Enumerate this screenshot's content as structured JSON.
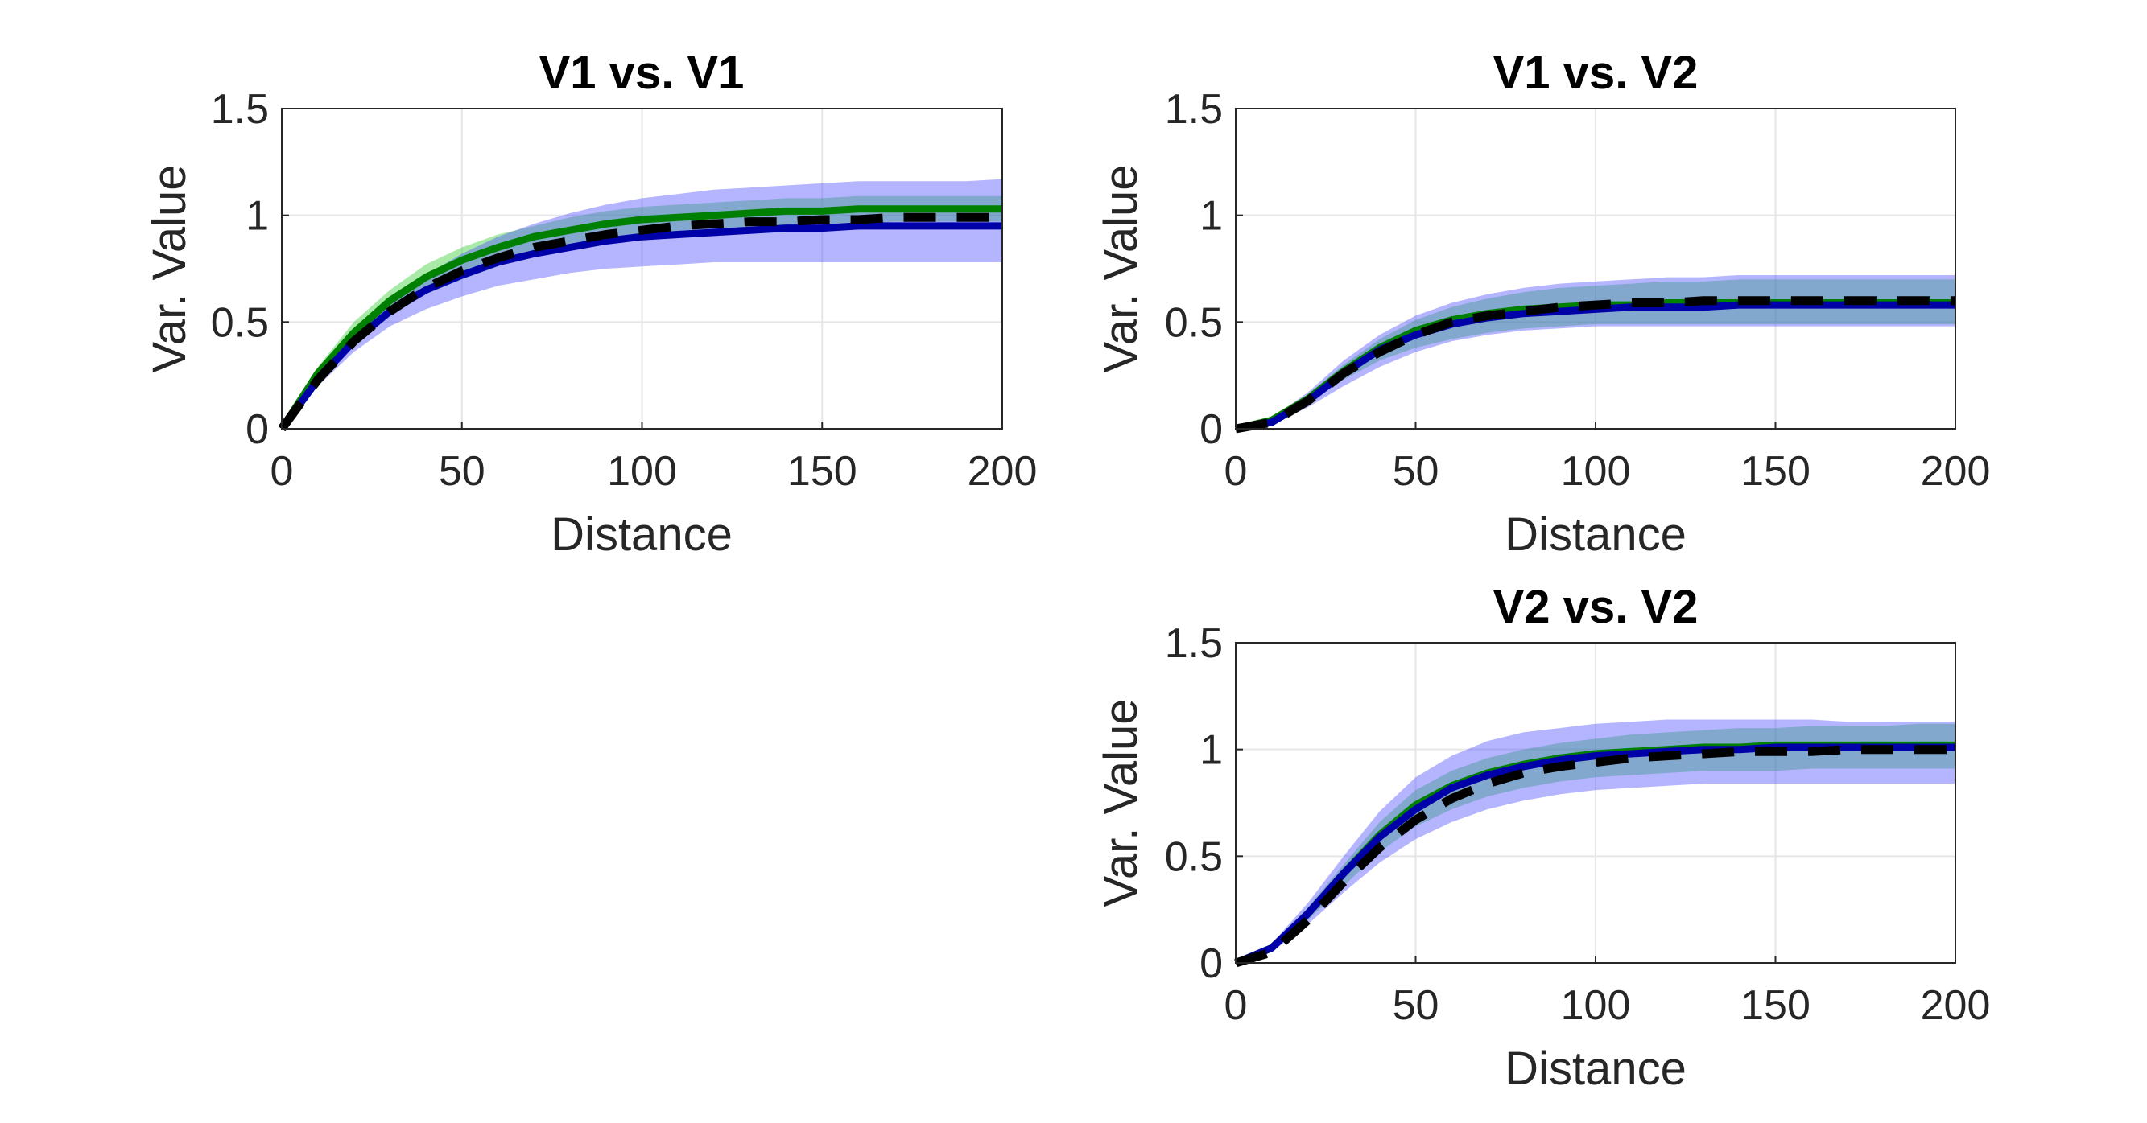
{
  "figure": {
    "style": {
      "axis_color": "#262626",
      "grid_color": "#e6e6e6",
      "green_band": "#33cc33",
      "blue_band": "#4d4dff",
      "green_line": "#008000",
      "blue_line": "#0000a8",
      "ref_line": "#000000"
    }
  },
  "chart_data": [
    {
      "type": "line",
      "title": "V1 vs. V1",
      "xlabel": "Distance",
      "ylabel": "Var. Value",
      "xlim": [
        0,
        200
      ],
      "ylim": [
        0,
        1.5
      ],
      "xticks": [
        0,
        50,
        100,
        150,
        200
      ],
      "yticks": [
        0,
        0.5,
        1,
        1.5
      ],
      "xtick_labels": [
        "0",
        "50",
        "100",
        "150",
        "200"
      ],
      "ytick_labels": [
        "0",
        "0.5",
        "1",
        "1.5"
      ],
      "grid": true,
      "x": [
        0,
        10,
        20,
        30,
        40,
        50,
        60,
        70,
        80,
        90,
        100,
        110,
        120,
        130,
        140,
        150,
        160,
        170,
        180,
        190,
        200
      ],
      "series": [
        {
          "role": "band",
          "color": "green",
          "lower": [
            0,
            0.23,
            0.4,
            0.53,
            0.63,
            0.7,
            0.76,
            0.81,
            0.85,
            0.88,
            0.9,
            0.92,
            0.93,
            0.94,
            0.95,
            0.96,
            0.96,
            0.97,
            0.97,
            0.97,
            0.97
          ],
          "upper": [
            0,
            0.29,
            0.5,
            0.65,
            0.77,
            0.85,
            0.91,
            0.95,
            0.99,
            1.02,
            1.04,
            1.05,
            1.06,
            1.07,
            1.08,
            1.08,
            1.09,
            1.09,
            1.09,
            1.09,
            1.09
          ]
        },
        {
          "role": "band",
          "color": "blue",
          "lower": [
            0,
            0.2,
            0.36,
            0.48,
            0.56,
            0.62,
            0.67,
            0.7,
            0.73,
            0.75,
            0.76,
            0.77,
            0.78,
            0.78,
            0.78,
            0.78,
            0.78,
            0.78,
            0.78,
            0.78,
            0.78
          ],
          "upper": [
            0,
            0.26,
            0.45,
            0.6,
            0.72,
            0.82,
            0.9,
            0.96,
            1.01,
            1.05,
            1.08,
            1.1,
            1.12,
            1.13,
            1.14,
            1.15,
            1.16,
            1.16,
            1.16,
            1.16,
            1.17
          ]
        },
        {
          "role": "line",
          "color": "green",
          "values": [
            0,
            0.26,
            0.45,
            0.6,
            0.71,
            0.79,
            0.85,
            0.9,
            0.93,
            0.96,
            0.98,
            0.99,
            1.0,
            1.01,
            1.02,
            1.02,
            1.03,
            1.03,
            1.03,
            1.03,
            1.03
          ]
        },
        {
          "role": "line",
          "color": "blue",
          "values": [
            0,
            0.23,
            0.41,
            0.55,
            0.65,
            0.72,
            0.78,
            0.82,
            0.85,
            0.88,
            0.9,
            0.91,
            0.92,
            0.93,
            0.94,
            0.94,
            0.95,
            0.95,
            0.95,
            0.95,
            0.95
          ]
        },
        {
          "role": "reference",
          "style": "dashed",
          "color": "black",
          "values": [
            0,
            0.23,
            0.41,
            0.55,
            0.66,
            0.74,
            0.8,
            0.85,
            0.88,
            0.91,
            0.93,
            0.95,
            0.96,
            0.97,
            0.97,
            0.98,
            0.98,
            0.99,
            0.99,
            0.99,
            0.99
          ]
        }
      ]
    },
    {
      "type": "line",
      "title": "V1 vs. V2",
      "xlabel": "Distance",
      "ylabel": "Var. Value",
      "xlim": [
        0,
        200
      ],
      "ylim": [
        0,
        1.5
      ],
      "xticks": [
        0,
        50,
        100,
        150,
        200
      ],
      "yticks": [
        0,
        0.5,
        1,
        1.5
      ],
      "xtick_labels": [
        "0",
        "50",
        "100",
        "150",
        "200"
      ],
      "ytick_labels": [
        "0",
        "0.5",
        "1",
        "1.5"
      ],
      "grid": true,
      "x": [
        0,
        10,
        20,
        30,
        40,
        50,
        60,
        70,
        80,
        90,
        100,
        110,
        120,
        130,
        140,
        150,
        160,
        170,
        180,
        190,
        200
      ],
      "series": [
        {
          "role": "band",
          "color": "green",
          "lower": [
            0,
            0.03,
            0.12,
            0.23,
            0.32,
            0.38,
            0.42,
            0.45,
            0.47,
            0.48,
            0.49,
            0.49,
            0.49,
            0.49,
            0.49,
            0.49,
            0.49,
            0.49,
            0.49,
            0.49,
            0.49
          ],
          "upper": [
            0,
            0.05,
            0.16,
            0.3,
            0.42,
            0.51,
            0.57,
            0.61,
            0.64,
            0.66,
            0.67,
            0.68,
            0.69,
            0.69,
            0.7,
            0.7,
            0.7,
            0.7,
            0.7,
            0.7,
            0.7
          ]
        },
        {
          "role": "band",
          "color": "blue",
          "lower": [
            0,
            0.02,
            0.1,
            0.2,
            0.29,
            0.36,
            0.41,
            0.44,
            0.46,
            0.47,
            0.48,
            0.48,
            0.48,
            0.48,
            0.48,
            0.48,
            0.48,
            0.48,
            0.48,
            0.48,
            0.48
          ],
          "upper": [
            0,
            0.05,
            0.17,
            0.32,
            0.44,
            0.53,
            0.59,
            0.63,
            0.66,
            0.68,
            0.69,
            0.7,
            0.71,
            0.71,
            0.72,
            0.72,
            0.72,
            0.72,
            0.72,
            0.72,
            0.72
          ]
        },
        {
          "role": "line",
          "color": "green",
          "values": [
            0,
            0.04,
            0.14,
            0.27,
            0.38,
            0.46,
            0.51,
            0.54,
            0.56,
            0.57,
            0.58,
            0.58,
            0.59,
            0.59,
            0.59,
            0.59,
            0.59,
            0.59,
            0.59,
            0.59,
            0.59
          ]
        },
        {
          "role": "line",
          "color": "blue",
          "values": [
            0,
            0.03,
            0.13,
            0.26,
            0.37,
            0.44,
            0.49,
            0.52,
            0.54,
            0.55,
            0.56,
            0.57,
            0.57,
            0.57,
            0.58,
            0.58,
            0.58,
            0.58,
            0.58,
            0.58,
            0.58
          ]
        },
        {
          "role": "reference",
          "style": "dashed",
          "color": "black",
          "values": [
            0,
            0.03,
            0.13,
            0.26,
            0.36,
            0.44,
            0.5,
            0.53,
            0.55,
            0.57,
            0.58,
            0.59,
            0.59,
            0.6,
            0.6,
            0.6,
            0.6,
            0.6,
            0.6,
            0.6,
            0.6
          ]
        }
      ]
    },
    {
      "type": "line",
      "title": "V2 vs. V2",
      "xlabel": "Distance",
      "ylabel": "Var. Value",
      "xlim": [
        0,
        200
      ],
      "ylim": [
        0,
        1.5
      ],
      "xticks": [
        0,
        50,
        100,
        150,
        200
      ],
      "yticks": [
        0,
        0.5,
        1,
        1.5
      ],
      "xtick_labels": [
        "0",
        "50",
        "100",
        "150",
        "200"
      ],
      "ytick_labels": [
        "0",
        "0.5",
        "1",
        "1.5"
      ],
      "grid": true,
      "x": [
        0,
        10,
        20,
        30,
        40,
        50,
        60,
        70,
        80,
        90,
        100,
        110,
        120,
        130,
        140,
        150,
        160,
        170,
        180,
        190,
        200
      ],
      "series": [
        {
          "role": "band",
          "color": "green",
          "lower": [
            0,
            0.06,
            0.2,
            0.36,
            0.52,
            0.64,
            0.72,
            0.78,
            0.82,
            0.85,
            0.87,
            0.88,
            0.89,
            0.9,
            0.9,
            0.9,
            0.91,
            0.91,
            0.91,
            0.91,
            0.91
          ],
          "upper": [
            0,
            0.08,
            0.26,
            0.46,
            0.66,
            0.81,
            0.9,
            0.96,
            1.0,
            1.03,
            1.05,
            1.07,
            1.08,
            1.09,
            1.1,
            1.1,
            1.11,
            1.11,
            1.11,
            1.12,
            1.12
          ]
        },
        {
          "role": "band",
          "color": "blue",
          "lower": [
            0,
            0.05,
            0.18,
            0.33,
            0.47,
            0.58,
            0.66,
            0.72,
            0.76,
            0.79,
            0.81,
            0.82,
            0.83,
            0.84,
            0.84,
            0.84,
            0.84,
            0.84,
            0.84,
            0.84,
            0.84
          ],
          "upper": [
            0,
            0.09,
            0.28,
            0.5,
            0.71,
            0.87,
            0.97,
            1.04,
            1.08,
            1.1,
            1.12,
            1.13,
            1.14,
            1.14,
            1.14,
            1.14,
            1.14,
            1.13,
            1.13,
            1.13,
            1.13
          ]
        },
        {
          "role": "line",
          "color": "green",
          "values": [
            0,
            0.07,
            0.23,
            0.42,
            0.6,
            0.74,
            0.83,
            0.89,
            0.93,
            0.96,
            0.98,
            0.99,
            1.0,
            1.01,
            1.01,
            1.02,
            1.02,
            1.02,
            1.02,
            1.02,
            1.02
          ]
        },
        {
          "role": "line",
          "color": "blue",
          "values": [
            0,
            0.07,
            0.23,
            0.42,
            0.59,
            0.72,
            0.82,
            0.88,
            0.92,
            0.95,
            0.97,
            0.98,
            0.99,
            1.0,
            1.0,
            1.01,
            1.01,
            1.01,
            1.01,
            1.01,
            1.01
          ]
        },
        {
          "role": "reference",
          "style": "dashed",
          "color": "black",
          "values": [
            0,
            0.05,
            0.2,
            0.38,
            0.54,
            0.67,
            0.77,
            0.84,
            0.89,
            0.92,
            0.94,
            0.96,
            0.97,
            0.98,
            0.99,
            0.99,
            0.99,
            1.0,
            1.0,
            1.0,
            1.0
          ]
        }
      ]
    }
  ]
}
